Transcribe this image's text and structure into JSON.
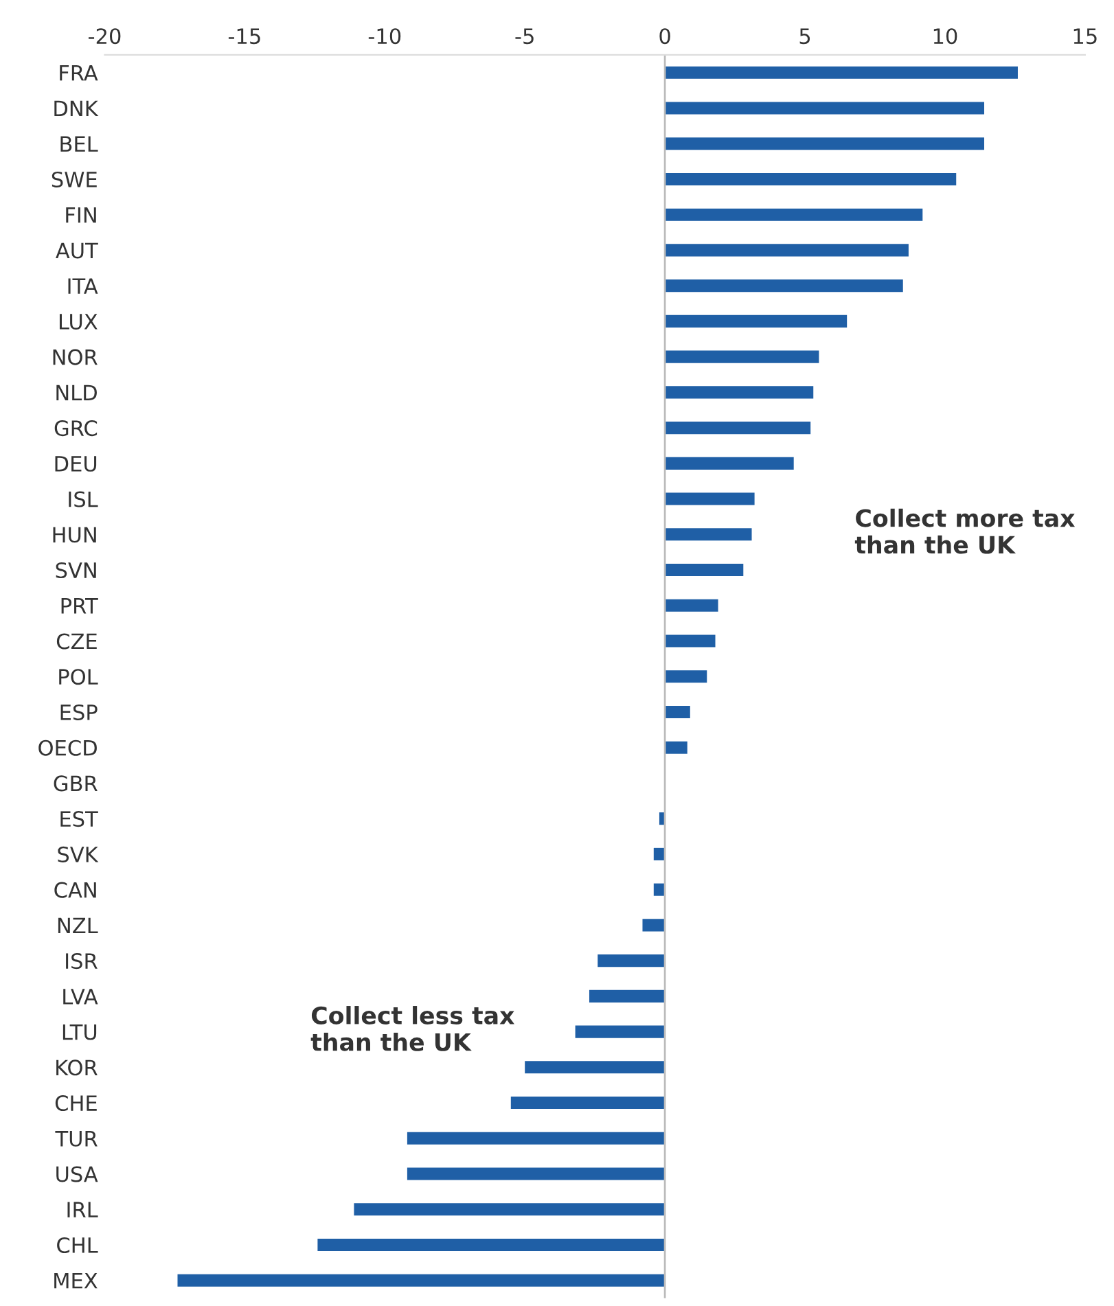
{
  "chart_data": {
    "type": "bar",
    "orientation": "horizontal",
    "categories": [
      "FRA",
      "DNK",
      "BEL",
      "SWE",
      "FIN",
      "AUT",
      "ITA",
      "LUX",
      "NOR",
      "NLD",
      "GRC",
      "DEU",
      "ISL",
      "HUN",
      "SVN",
      "PRT",
      "CZE",
      "POL",
      "ESP",
      "OECD",
      "GBR",
      "EST",
      "SVK",
      "CAN",
      "NZL",
      "ISR",
      "LVA",
      "LTU",
      "KOR",
      "CHE",
      "TUR",
      "USA",
      "IRL",
      "CHL",
      "MEX"
    ],
    "values": [
      12.6,
      11.4,
      11.4,
      10.4,
      9.2,
      8.7,
      8.5,
      6.5,
      5.5,
      5.3,
      5.2,
      4.6,
      3.2,
      3.1,
      2.8,
      1.9,
      1.8,
      1.5,
      0.9,
      0.8,
      0,
      -0.2,
      -0.4,
      -0.4,
      -0.8,
      -2.4,
      -2.7,
      -3.2,
      -5.0,
      -5.5,
      -9.2,
      -9.2,
      -11.1,
      -12.4,
      -17.4
    ],
    "color": "#1f5fa6",
    "xlim": [
      -20,
      15
    ],
    "xticks": [
      -20,
      -15,
      -10,
      -5,
      0,
      5,
      10,
      15
    ],
    "grid": false,
    "legend": false,
    "ref_lines": [
      {
        "axis": "x",
        "value": 0,
        "color": "#bbbbbb"
      }
    ],
    "annotations": [
      "Collect more tax\nthan the UK",
      "Collect less tax\nthan the UK"
    ]
  }
}
